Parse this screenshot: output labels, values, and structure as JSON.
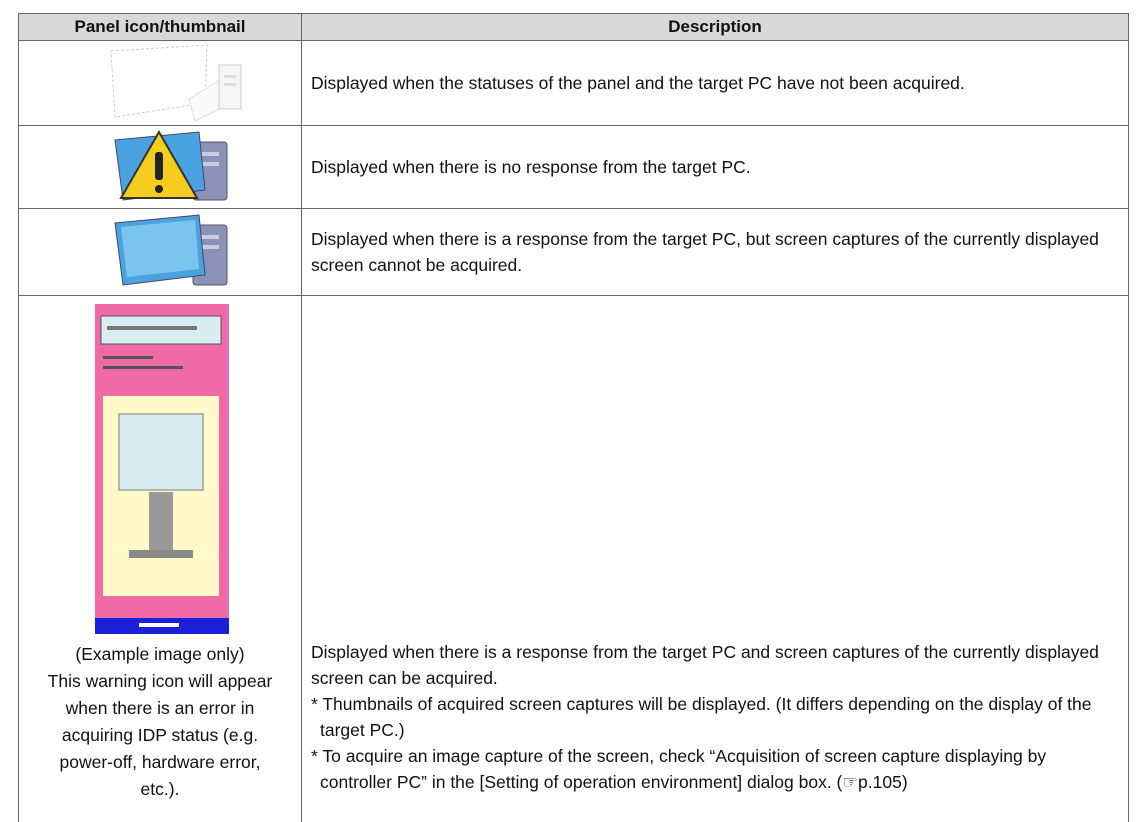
{
  "table": {
    "header": [
      "Panel icon/thumbnail",
      "Description"
    ],
    "rows": [
      {
        "description": [
          "Displayed when the statuses of the panel and the target PC have not been acquired."
        ]
      },
      {
        "description": [
          "Displayed when there is no response from the target PC."
        ]
      },
      {
        "description": [
          "Displayed when there is a response from the target PC, but screen captures of the currently displayed screen cannot be acquired."
        ]
      },
      {
        "caption": [
          "(Example image only)",
          "This warning icon will appear",
          "when there is an error in",
          "acquiring IDP status (e.g.",
          "power-off, hardware error,",
          "etc.)."
        ],
        "description": [
          "Displayed when there is a response from the target PC and screen captures of the currently displayed screen can be acquired.",
          "* Thumbnails of acquired screen captures will be displayed. (It differs depending on the display of the target PC.)",
          "* To acquire an image capture of the screen, check “Acquisition of screen capture displaying by controller PC” in the [Setting of operation environment] dialog box. (☞p.105)"
        ]
      }
    ]
  }
}
